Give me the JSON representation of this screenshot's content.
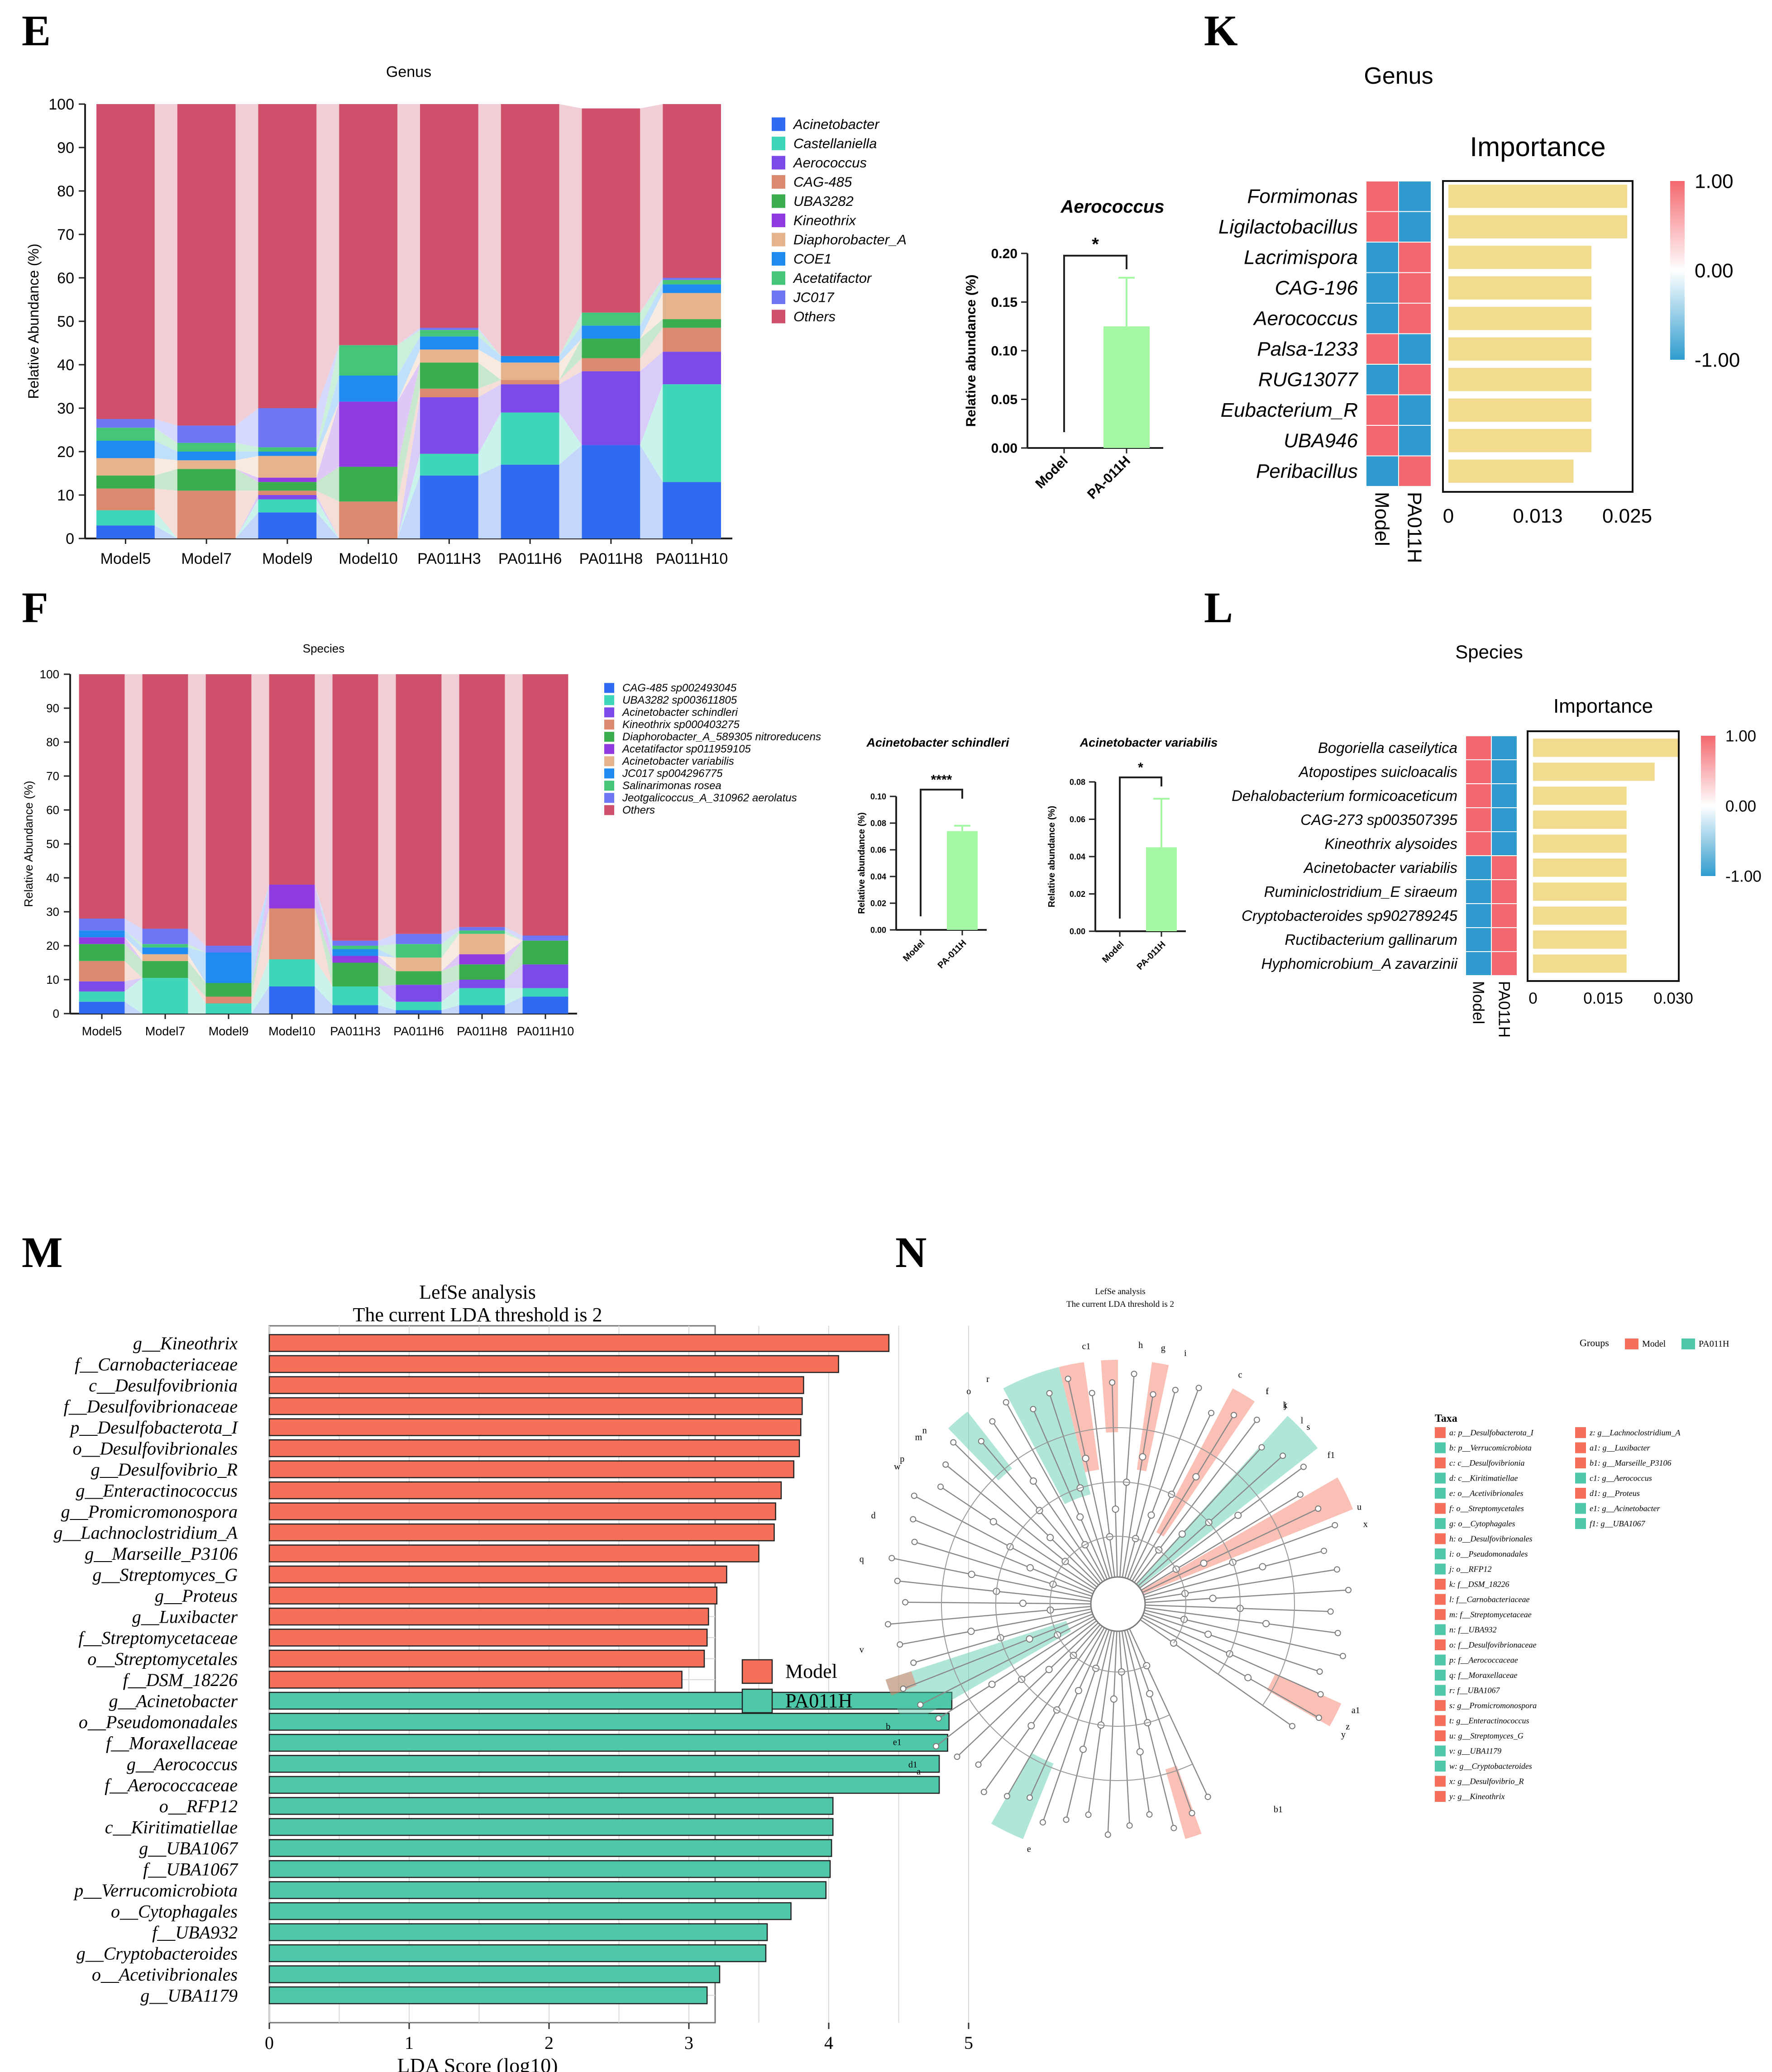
{
  "colors": {
    "others": "#CE506A",
    "model": "#F4705A",
    "pa011h": "#4FC7A9",
    "importance": "#F0DB8E",
    "bar_green": "#A5F8A3",
    "hm_red": "#F4686F",
    "hm_blue": "#2F9BCF"
  },
  "panel_letters": {
    "E": "E",
    "K": "K",
    "F": "F",
    "L": "L",
    "M": "M",
    "N": "N"
  },
  "panel_E": {
    "title": "Genus",
    "ylabel": "Relative Abundance (%)",
    "yticks": [
      "0",
      "10",
      "20",
      "30",
      "40",
      "50",
      "60",
      "70",
      "80",
      "90",
      "100"
    ],
    "samples": [
      "Model5",
      "Model7",
      "Model9",
      "Model10",
      "PA011H3",
      "PA011H6",
      "PA011H8",
      "PA011H10"
    ],
    "legend": [
      {
        "label": "Acinetobacter",
        "color": "#2F6BF2"
      },
      {
        "label": "Castellaniella",
        "color": "#3FD5B8"
      },
      {
        "label": "Aerococcus",
        "color": "#7B4AE8"
      },
      {
        "label": "CAG-485",
        "color": "#DB8A70"
      },
      {
        "label": "UBA3282",
        "color": "#3AAE4E"
      },
      {
        "label": "Kineothrix",
        "color": "#8F3BE0"
      },
      {
        "label": "Diaphorobacter_A",
        "color": "#E5B48D"
      },
      {
        "label": "COE1",
        "color": "#1F8BF0"
      },
      {
        "label": "Acetatifactor",
        "color": "#45C57A"
      },
      {
        "label": "JC017",
        "color": "#6E76F5"
      },
      {
        "label": "Others",
        "color": "#CE506A"
      }
    ],
    "stacks": [
      [
        3,
        3.5,
        0,
        5,
        3,
        0,
        4,
        4,
        3,
        2,
        72.5
      ],
      [
        0,
        0,
        0,
        11,
        5,
        0,
        2,
        2,
        2,
        4,
        74
      ],
      [
        6,
        3,
        1,
        1,
        2,
        1,
        5,
        1,
        1,
        9,
        70
      ],
      [
        0,
        0,
        0,
        8.5,
        8,
        15,
        0,
        6,
        7,
        0,
        55.5
      ],
      [
        14.5,
        5,
        13,
        2,
        6,
        0,
        3,
        3,
        1.5,
        0.5,
        51.5
      ],
      [
        17,
        12,
        6.5,
        1,
        0,
        0,
        4,
        1.5,
        0,
        0,
        58
      ],
      [
        21.5,
        0,
        17,
        3,
        4.5,
        0,
        0,
        3,
        3,
        0,
        47
      ],
      [
        13,
        22.5,
        7.5,
        5.5,
        2,
        0,
        6,
        2,
        1,
        0.5,
        40
      ]
    ]
  },
  "panel_E_bar": {
    "title": "Aerococcus",
    "ylabel": "Relative abundance (%)",
    "yticks": [
      "0.00",
      "0.05",
      "0.10",
      "0.15",
      "0.20"
    ],
    "categories": [
      "Model",
      "PA-011H"
    ],
    "sig": "*"
  },
  "panel_K": {
    "title": "Genus",
    "imp_title": "Importance",
    "rows": [
      "Formimonas",
      "Ligilactobacillus",
      "Lacrimispora",
      "CAG-196",
      "Aerococcus",
      "Palsa-1233",
      "RUG13077",
      "Eubacterium_R",
      "UBA946",
      "Peribacillus"
    ],
    "cols": [
      "Model",
      "PA011H"
    ],
    "xticks": [
      "0",
      "0.013",
      "0.025"
    ],
    "cbar": [
      "1.00",
      "0.00",
      "-1.00"
    ]
  },
  "panel_F": {
    "title": "Species",
    "ylabel": "Relative Abundance (%)",
    "yticks": [
      "0",
      "10",
      "20",
      "30",
      "40",
      "50",
      "60",
      "70",
      "80",
      "90",
      "100"
    ],
    "samples": [
      "Model5",
      "Model7",
      "Model9",
      "Model10",
      "PA011H3",
      "PA011H6",
      "PA011H8",
      "PA011H10"
    ],
    "legend": [
      {
        "label": "CAG-485 sp002493045",
        "color": "#2F6BF2"
      },
      {
        "label": "UBA3282 sp003611805",
        "color": "#3FD5B8"
      },
      {
        "label": "Acinetobacter schindleri",
        "color": "#7B4AE8"
      },
      {
        "label": "Kineothrix sp000403275",
        "color": "#DB8A70"
      },
      {
        "label": "Diaphorobacter_A_589305 nitroreducens",
        "color": "#3AAE4E"
      },
      {
        "label": "Acetatifactor sp011959105",
        "color": "#8F3BE0"
      },
      {
        "label": "Acinetobacter variabilis",
        "color": "#E5B48D"
      },
      {
        "label": "JC017 sp004296775",
        "color": "#1F8BF0"
      },
      {
        "label": "Salinarimonas rosea",
        "color": "#45C57A"
      },
      {
        "label": "Jeotgalicoccus_A_310962 aerolatus",
        "color": "#6E76F5"
      },
      {
        "label": "Others",
        "color": "#CE506A"
      }
    ],
    "stacks": [
      [
        3.5,
        3,
        3,
        6,
        5,
        2,
        0,
        2,
        0,
        3.5,
        72
      ],
      [
        0,
        10.5,
        0,
        0,
        5,
        0,
        2,
        2,
        1,
        4.5,
        75
      ],
      [
        0,
        3,
        0,
        2,
        4,
        0,
        0,
        9,
        0,
        2,
        80
      ],
      [
        8,
        8,
        0,
        15,
        0,
        7,
        0,
        0,
        0,
        0,
        62
      ],
      [
        2.5,
        5.5,
        0,
        0,
        7,
        2,
        0,
        2,
        1,
        1.5,
        78.5
      ],
      [
        1,
        2.5,
        5,
        0,
        4,
        0,
        4,
        0,
        4,
        3,
        76.5
      ],
      [
        2.5,
        5,
        2.5,
        0,
        4.5,
        3,
        6,
        0,
        1,
        1,
        74.5
      ],
      [
        5,
        2.5,
        7,
        0,
        7,
        0,
        0,
        0,
        0,
        1.5,
        77
      ]
    ]
  },
  "panel_F_bar1": {
    "title": "Acinetobacter schindleri",
    "ylabel": "Relative abundance (%)",
    "yticks": [
      "0.00",
      "0.02",
      "0.04",
      "0.06",
      "0.08",
      "0.10"
    ],
    "categories": [
      "Model",
      "PA-011H"
    ],
    "sig": "****"
  },
  "panel_F_bar2": {
    "title": "Acinetobacter variabilis",
    "ylabel": "Relative abundance (%)",
    "yticks": [
      "0.00",
      "0.02",
      "0.04",
      "0.06",
      "0.08"
    ],
    "categories": [
      "Model",
      "PA-011H"
    ],
    "sig": "*"
  },
  "panel_L": {
    "title": "Species",
    "imp_title": "Importance",
    "rows": [
      "Bogoriella caseilytica",
      "Atopostipes suicloacalis",
      "Dehalobacterium formicoaceticum",
      "CAG-273 sp003507395",
      "Kineothrix alysoides",
      "Acinetobacter variabilis",
      "Ruminiclostridium_E siraeum",
      "Cryptobacteroides sp902789245",
      "Ructibacterium gallinarum",
      "Hyphomicrobium_A zavarzinii"
    ],
    "cols": [
      "Model",
      "PA011H"
    ],
    "xticks": [
      "0",
      "0.015",
      "0.030"
    ],
    "cbar": [
      "1.00",
      "0.00",
      "-1.00"
    ]
  },
  "panel_M": {
    "title1": "LefSe analysis",
    "title2": "The current LDA threshold is 2",
    "xlabel": "LDA Score (log10)",
    "xticks": [
      "0",
      "1",
      "2",
      "3",
      "4",
      "5"
    ],
    "legend": [
      "Model",
      "PA011H"
    ],
    "features": [
      "g__Kineothrix",
      "f__Carnobacteriaceae",
      "c__Desulfovibrionia",
      "f__Desulfovibrionaceae",
      "p__Desulfobacterota_I",
      "o__Desulfovibrionales",
      "g__Desulfovibrio_R",
      "g__Enteractinococcus",
      "g__Promicromonospora",
      "g__Lachnoclostridium_A",
      "g__Marseille_P3106",
      "g__Streptomyces_G",
      "g__Proteus",
      "g__Luxibacter",
      "f__Streptomycetaceae",
      "o__Streptomycetales",
      "f__DSM_18226",
      "g__Acinetobacter",
      "o__Pseudomonadales",
      "f__Moraxellaceae",
      "g__Aerococcus",
      "f__Aerococcaceae",
      "o__RFP12",
      "c__Kiritimatiellae",
      "g__UBA1067",
      "f__UBA1067",
      "p__Verrucomicrobiota",
      "o__Cytophagales",
      "f__UBA932",
      "g__Cryptobacteroides",
      "o__Acetivibrionales",
      "g__UBA1179"
    ]
  },
  "panel_N": {
    "title1": "LefSe analysis",
    "title2": "The current LDA threshold is 2",
    "groups_label": "Groups",
    "groups": [
      "Model",
      "PA011H"
    ],
    "taxa_title": "Taxa",
    "ring_labels": [
      "a",
      "b",
      "c",
      "d",
      "e",
      "f",
      "g",
      "h",
      "i",
      "j",
      "k",
      "l",
      "m",
      "n",
      "o",
      "p",
      "q",
      "r",
      "s",
      "t",
      "u",
      "v",
      "w",
      "x",
      "y",
      "z",
      "a1",
      "b1",
      "c1",
      "d1",
      "e1",
      "f1"
    ],
    "taxa": [
      "a: p__Desulfobacterota_I",
      "b: p__Verrucomicrobiota",
      "c: c__Desulfovibrionia",
      "d: c__Kiritimatiellae",
      "e: o__Acetivibrionales",
      "f: o__Streptomycetales",
      "g: o__Cytophagales",
      "h: o__Desulfovibrionales",
      "i: o__Pseudomonadales",
      "j: o__RFP12",
      "k: f__DSM_18226",
      "l: f__Carnobacteriaceae",
      "m: f__Streptomycetaceae",
      "n: f__UBA932",
      "o: f__Desulfovibrionaceae",
      "p: f__Aerococcaceae",
      "q: f__Moraxellaceae",
      "r: f__UBA1067",
      "s: g__Promicromonospora",
      "t: g__Enteractinococcus",
      "u: g__Streptomyces_G",
      "v: g__UBA1179",
      "w: g__Cryptobacteroides",
      "x: g__Desulfovibrio_R",
      "y: g__Kineothrix",
      "z: g__Lachnoclostridium_A",
      "a1: g__Luxibacter",
      "b1: g__Marseille_P3106",
      "c1: g__Aerococcus",
      "d1: g__Proteus",
      "e1: g__Acinetobacter",
      "f1: g__UBA1067"
    ]
  },
  "chart_data": [
    {
      "type": "bar",
      "id": "E",
      "stacked": true,
      "title": "Genus",
      "ylabel": "Relative Abundance (%)",
      "ylim": [
        0,
        100
      ],
      "categories": [
        "Model5",
        "Model7",
        "Model9",
        "Model10",
        "PA011H3",
        "PA011H6",
        "PA011H8",
        "PA011H10"
      ],
      "series_names": [
        "Acinetobacter",
        "Castellaniella",
        "Aerococcus",
        "CAG-485",
        "UBA3282",
        "Kineothrix",
        "Diaphorobacter_A",
        "COE1",
        "Acetatifactor",
        "JC017",
        "Others"
      ],
      "note": "values per sample in panel_E.stacks (percent, bottom-to-top)"
    },
    {
      "type": "bar",
      "id": "E-aerococcus",
      "title": "Aerococcus",
      "ylabel": "Relative abundance (%)",
      "ylim": [
        0,
        0.2
      ],
      "categories": [
        "Model",
        "PA-011H"
      ],
      "values": [
        0,
        0.125
      ],
      "error": [
        0,
        0.05
      ],
      "significance": "*"
    },
    {
      "type": "heatmap",
      "id": "K",
      "title": "Genus",
      "xlabel": "Importance",
      "rows": [
        "Formimonas",
        "Ligilactobacillus",
        "Lacrimispora",
        "CAG-196",
        "Aerococcus",
        "Palsa-1233",
        "RUG13077",
        "Eubacterium_R",
        "UBA946",
        "Peribacillus"
      ],
      "columns": [
        "Model",
        "PA011H"
      ],
      "matrix": [
        [
          1,
          -1
        ],
        [
          1,
          -1
        ],
        [
          -1,
          1
        ],
        [
          -1,
          1
        ],
        [
          -1,
          1
        ],
        [
          1,
          -1
        ],
        [
          -1,
          1
        ],
        [
          1,
          -1
        ],
        [
          1,
          -1
        ],
        [
          -1,
          1
        ]
      ],
      "importance": [
        0.025,
        0.025,
        0.02,
        0.02,
        0.02,
        0.02,
        0.02,
        0.02,
        0.02,
        0.0175
      ],
      "xlim": [
        0,
        0.025
      ]
    },
    {
      "type": "bar",
      "id": "F",
      "stacked": true,
      "title": "Species",
      "ylabel": "Relative Abundance (%)",
      "ylim": [
        0,
        100
      ],
      "categories": [
        "Model5",
        "Model7",
        "Model9",
        "Model10",
        "PA011H3",
        "PA011H6",
        "PA011H8",
        "PA011H10"
      ],
      "note": "values per sample in panel_F.stacks (percent, bottom-to-top)"
    },
    {
      "type": "bar",
      "id": "F-schindleri",
      "title": "Acinetobacter schindleri",
      "ylabel": "Relative abundance (%)",
      "ylim": [
        0,
        0.1
      ],
      "categories": [
        "Model",
        "PA-011H"
      ],
      "values": [
        0,
        0.074
      ],
      "error": [
        0,
        0.004
      ],
      "significance": "****"
    },
    {
      "type": "bar",
      "id": "F-variabilis",
      "title": "Acinetobacter variabilis",
      "ylabel": "Relative abundance (%)",
      "ylim": [
        0,
        0.08
      ],
      "categories": [
        "Model",
        "PA-011H"
      ],
      "values": [
        0,
        0.045
      ],
      "error": [
        0,
        0.026
      ],
      "significance": "*"
    },
    {
      "type": "heatmap",
      "id": "L",
      "title": "Species",
      "xlabel": "Importance",
      "rows": [
        "Bogoriella caseilytica",
        "Atopostipes suicloacalis",
        "Dehalobacterium formicoaceticum",
        "CAG-273 sp003507395",
        "Kineothrix alysoides",
        "Acinetobacter variabilis",
        "Ruminiclostridium_E siraeum",
        "Cryptobacteroides sp902789245",
        "Ructibacterium gallinarum",
        "Hyphomicrobium_A zavarzinii"
      ],
      "columns": [
        "Model",
        "PA011H"
      ],
      "matrix": [
        [
          1,
          -1
        ],
        [
          1,
          -1
        ],
        [
          1,
          -1
        ],
        [
          1,
          -1
        ],
        [
          1,
          -1
        ],
        [
          -1,
          1
        ],
        [
          -1,
          1
        ],
        [
          -1,
          1
        ],
        [
          -1,
          1
        ],
        [
          -1,
          1
        ]
      ],
      "importance": [
        0.031,
        0.026,
        0.02,
        0.02,
        0.02,
        0.02,
        0.02,
        0.02,
        0.02,
        0.02
      ],
      "xlim": [
        0,
        0.03
      ]
    },
    {
      "type": "bar",
      "id": "M",
      "orientation": "horizontal",
      "title": "LefSe analysis",
      "xlabel": "LDA Score (log10)",
      "xlim": [
        0,
        5
      ],
      "categories": [
        "g__Kineothrix",
        "f__Carnobacteriaceae",
        "c__Desulfovibrionia",
        "f__Desulfovibrionaceae",
        "p__Desulfobacterota_I",
        "o__Desulfovibrionales",
        "g__Desulfovibrio_R",
        "g__Enteractinococcus",
        "g__Promicromonospora",
        "g__Lachnoclostridium_A",
        "g__Marseille_P3106",
        "g__Streptomyces_G",
        "g__Proteus",
        "g__Luxibacter",
        "f__Streptomycetaceae",
        "o__Streptomycetales",
        "f__DSM_18226",
        "g__Acinetobacter",
        "o__Pseudomonadales",
        "f__Moraxellaceae",
        "g__Aerococcus",
        "f__Aerococcaceae",
        "o__RFP12",
        "c__Kiritimatiellae",
        "g__UBA1067",
        "f__UBA1067",
        "p__Verrucomicrobiota",
        "o__Cytophagales",
        "f__UBA932",
        "g__Cryptobacteroides",
        "o__Acetivibrionales",
        "g__UBA1179"
      ],
      "values": [
        4.43,
        4.07,
        3.82,
        3.81,
        3.8,
        3.79,
        3.75,
        3.66,
        3.62,
        3.61,
        3.5,
        3.27,
        3.2,
        3.14,
        3.13,
        3.11,
        2.95,
        4.88,
        4.86,
        4.85,
        4.79,
        4.79,
        4.03,
        4.03,
        4.02,
        4.01,
        3.98,
        3.73,
        3.56,
        3.55,
        3.22,
        3.13
      ],
      "groups": [
        "Model",
        "Model",
        "Model",
        "Model",
        "Model",
        "Model",
        "Model",
        "Model",
        "Model",
        "Model",
        "Model",
        "Model",
        "Model",
        "Model",
        "Model",
        "Model",
        "Model",
        "PA011H",
        "PA011H",
        "PA011H",
        "PA011H",
        "PA011H",
        "PA011H",
        "PA011H",
        "PA011H",
        "PA011H",
        "PA011H",
        "PA011H",
        "PA011H",
        "PA011H",
        "PA011H",
        "PA011H"
      ]
    }
  ]
}
